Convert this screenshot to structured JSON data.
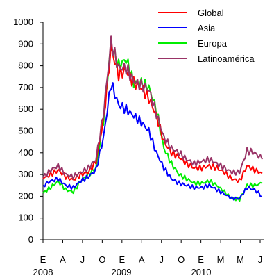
{
  "chart_data": {
    "type": "line",
    "y_axis": {
      "range": [
        0,
        1000
      ],
      "ticks": [
        "0",
        "100",
        "200",
        "300",
        "400",
        "500",
        "600",
        "700",
        "800",
        "900",
        "1000"
      ]
    },
    "x_axis": {
      "month_ticks": [
        "E",
        "A",
        "J",
        "O",
        "E",
        "A",
        "J",
        "O",
        "E",
        "M",
        "M",
        "J"
      ],
      "year_labels": [
        "2008",
        "2009",
        "2010"
      ]
    },
    "legend": {
      "placement": "top-right",
      "items": [
        "Global",
        "Asia",
        "Europa",
        "Latinoamérica"
      ]
    },
    "colors": {
      "Global": "#ff0000",
      "Asia": "#0000ff",
      "Europa": "#00ee00",
      "Latinoamérica": "#993366"
    },
    "x": [
      "2008-01",
      "2008-02",
      "2008-03",
      "2008-04",
      "2008-05",
      "2008-06",
      "2008-07",
      "2008-08",
      "2008-09",
      "2008-10",
      "2008-11",
      "2008-12",
      "2009-01",
      "2009-02",
      "2009-03",
      "2009-04",
      "2009-05",
      "2009-06",
      "2009-07",
      "2009-08",
      "2009-09",
      "2009-10",
      "2009-11",
      "2009-12",
      "2010-01",
      "2010-02",
      "2010-03",
      "2010-04",
      "2010-05",
      "2010-06"
    ],
    "series": [
      {
        "name": "Global",
        "values": [
          280,
          300,
          320,
          290,
          275,
          300,
          310,
          360,
          550,
          880,
          760,
          780,
          720,
          700,
          650,
          570,
          450,
          400,
          380,
          350,
          330,
          330,
          340,
          330,
          310,
          280,
          270,
          340,
          320,
          305
        ]
      },
      {
        "name": "Asia",
        "values": [
          250,
          270,
          280,
          250,
          240,
          270,
          290,
          320,
          470,
          720,
          620,
          600,
          570,
          540,
          500,
          400,
          330,
          280,
          260,
          250,
          240,
          240,
          250,
          230,
          210,
          190,
          190,
          240,
          230,
          200
        ]
      },
      {
        "name": "Europa",
        "values": [
          215,
          240,
          270,
          230,
          220,
          270,
          300,
          330,
          550,
          900,
          800,
          830,
          720,
          720,
          700,
          600,
          420,
          350,
          300,
          280,
          260,
          260,
          270,
          250,
          220,
          190,
          185,
          250,
          250,
          260
        ]
      },
      {
        "name": "Latinoamérica",
        "values": [
          285,
          320,
          340,
          300,
          290,
          310,
          330,
          370,
          580,
          910,
          790,
          790,
          730,
          710,
          690,
          580,
          470,
          420,
          400,
          370,
          350,
          360,
          370,
          350,
          330,
          310,
          310,
          410,
          400,
          370
        ]
      }
    ]
  }
}
